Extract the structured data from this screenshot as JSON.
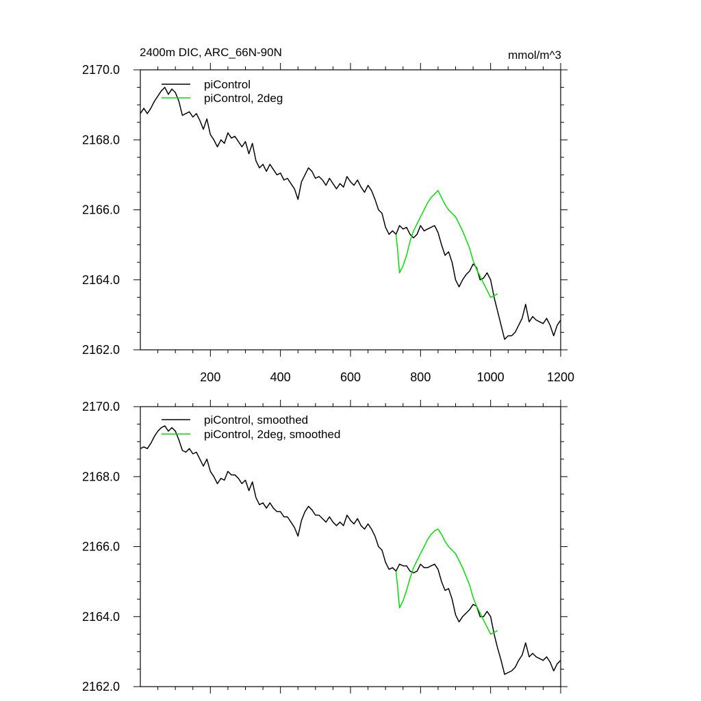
{
  "colors": {
    "black_series": "#000000",
    "green_series": "#00dd00",
    "axes": "#000000",
    "background": "#ffffff"
  },
  "chart_data": [
    {
      "type": "line",
      "title": "2400m DIC, ARC_66N-90N",
      "units": "mmol/m^3",
      "xlabel": "",
      "ylabel": "",
      "xlim": [
        0,
        1200
      ],
      "ylim": [
        2162.0,
        2170.0
      ],
      "x_ticks": [
        200,
        400,
        600,
        800,
        1000,
        1200
      ],
      "x_tick_labels": [
        "200",
        "400",
        "600",
        "800",
        "1000",
        "1200"
      ],
      "y_ticks": [
        2162.0,
        2164.0,
        2166.0,
        2168.0,
        2170.0
      ],
      "y_tick_labels": [
        "2162.0",
        "2164.0",
        "2166.0",
        "2168.0",
        "2170.0"
      ],
      "legend_placement": "top-left",
      "grid": false,
      "series": [
        {
          "name": "piControl",
          "color": "#000000",
          "x": [
            0,
            10,
            20,
            30,
            40,
            50,
            60,
            70,
            80,
            90,
            100,
            110,
            120,
            130,
            140,
            150,
            160,
            170,
            180,
            190,
            200,
            210,
            220,
            230,
            240,
            250,
            260,
            270,
            280,
            290,
            300,
            310,
            320,
            330,
            340,
            350,
            360,
            370,
            380,
            390,
            400,
            410,
            420,
            430,
            440,
            450,
            460,
            470,
            480,
            490,
            500,
            510,
            520,
            530,
            540,
            550,
            560,
            570,
            580,
            590,
            600,
            610,
            620,
            630,
            640,
            650,
            660,
            670,
            680,
            690,
            700,
            710,
            720,
            730,
            740,
            750,
            760,
            770,
            780,
            790,
            800,
            810,
            820,
            830,
            840,
            850,
            860,
            870,
            880,
            890,
            900,
            910,
            920,
            930,
            940,
            950,
            960,
            970,
            980,
            990,
            1000,
            1010,
            1020,
            1030,
            1040,
            1050,
            1060,
            1070,
            1080,
            1090,
            1100,
            1110,
            1120,
            1130,
            1140,
            1150,
            1160,
            1170,
            1180,
            1190,
            1200
          ],
          "values": [
            2168.75,
            2168.9,
            2168.75,
            2168.9,
            2169.1,
            2169.25,
            2169.4,
            2169.5,
            2169.3,
            2169.45,
            2169.35,
            2169.1,
            2168.7,
            2168.75,
            2168.8,
            2168.65,
            2168.75,
            2168.55,
            2168.3,
            2168.6,
            2168.15,
            2168.0,
            2167.8,
            2168.0,
            2167.9,
            2168.2,
            2168.05,
            2168.1,
            2167.95,
            2167.8,
            2167.95,
            2167.6,
            2167.9,
            2167.4,
            2167.2,
            2167.3,
            2167.1,
            2167.3,
            2167.15,
            2167.0,
            2167.05,
            2166.85,
            2166.9,
            2166.75,
            2166.6,
            2166.3,
            2166.8,
            2167.0,
            2167.2,
            2167.1,
            2166.9,
            2166.95,
            2166.85,
            2166.7,
            2166.9,
            2166.75,
            2166.6,
            2166.75,
            2166.65,
            2166.95,
            2166.8,
            2166.7,
            2166.85,
            2166.65,
            2166.5,
            2166.7,
            2166.55,
            2166.3,
            2166.0,
            2165.9,
            2165.5,
            2165.3,
            2165.4,
            2165.3,
            2165.55,
            2165.45,
            2165.5,
            2165.3,
            2165.2,
            2165.3,
            2165.55,
            2165.4,
            2165.45,
            2165.5,
            2165.55,
            2165.35,
            2165.0,
            2164.7,
            2164.8,
            2164.5,
            2164.0,
            2163.8,
            2164.0,
            2164.15,
            2164.25,
            2164.45,
            2164.35,
            2164.0,
            2164.05,
            2164.2,
            2164.0,
            2163.5,
            2163.1,
            2162.7,
            2162.3,
            2162.4,
            2162.4,
            2162.5,
            2162.7,
            2162.9,
            2163.3,
            2162.8,
            2162.95,
            2162.85,
            2162.8,
            2162.75,
            2162.9,
            2162.7,
            2162.4,
            2162.7,
            2162.85
          ],
          "name_shown": true
        },
        {
          "name": "piControl, 2deg",
          "color": "#00dd00",
          "x": [
            730,
            735,
            740,
            750,
            760,
            770,
            780,
            790,
            800,
            810,
            820,
            830,
            840,
            850,
            860,
            870,
            880,
            890,
            900,
            910,
            920,
            930,
            940,
            950,
            960,
            970,
            980,
            990,
            1000,
            1010,
            1020
          ],
          "values": [
            2165.3,
            2164.8,
            2164.2,
            2164.4,
            2164.7,
            2165.1,
            2165.4,
            2165.6,
            2165.8,
            2166.0,
            2166.2,
            2166.35,
            2166.45,
            2166.55,
            2166.35,
            2166.15,
            2166.0,
            2165.9,
            2165.8,
            2165.6,
            2165.4,
            2165.15,
            2164.9,
            2164.55,
            2164.3,
            2164.1,
            2163.9,
            2163.7,
            2163.5,
            2163.55,
            2163.6
          ]
        }
      ]
    },
    {
      "type": "line",
      "title": "",
      "xlabel": "",
      "ylabel": "",
      "xlim": [
        0,
        1200
      ],
      "ylim": [
        2162.0,
        2170.0
      ],
      "x_ticks": [
        200,
        400,
        600,
        800,
        1000,
        1200
      ],
      "y_ticks": [
        2162.0,
        2164.0,
        2166.0,
        2168.0,
        2170.0
      ],
      "y_tick_labels": [
        "2162.0",
        "2164.0",
        "2166.0",
        "2168.0",
        "2170.0"
      ],
      "legend_placement": "top-left",
      "grid": false,
      "series": [
        {
          "name": "piControl, smoothed",
          "color": "#000000",
          "x": [
            0,
            10,
            20,
            30,
            40,
            50,
            60,
            70,
            80,
            90,
            100,
            110,
            120,
            130,
            140,
            150,
            160,
            170,
            180,
            190,
            200,
            210,
            220,
            230,
            240,
            250,
            260,
            270,
            280,
            290,
            300,
            310,
            320,
            330,
            340,
            350,
            360,
            370,
            380,
            390,
            400,
            410,
            420,
            430,
            440,
            450,
            460,
            470,
            480,
            490,
            500,
            510,
            520,
            530,
            540,
            550,
            560,
            570,
            580,
            590,
            600,
            610,
            620,
            630,
            640,
            650,
            660,
            670,
            680,
            690,
            700,
            710,
            720,
            730,
            740,
            750,
            760,
            770,
            780,
            790,
            800,
            810,
            820,
            830,
            840,
            850,
            860,
            870,
            880,
            890,
            900,
            910,
            920,
            930,
            940,
            950,
            960,
            970,
            980,
            990,
            1000,
            1010,
            1020,
            1030,
            1040,
            1050,
            1060,
            1070,
            1080,
            1090,
            1100,
            1110,
            1120,
            1130,
            1140,
            1150,
            1160,
            1170,
            1180,
            1190,
            1200
          ],
          "values": [
            2168.8,
            2168.85,
            2168.8,
            2168.95,
            2169.15,
            2169.3,
            2169.4,
            2169.45,
            2169.3,
            2169.4,
            2169.3,
            2169.05,
            2168.75,
            2168.7,
            2168.8,
            2168.65,
            2168.7,
            2168.5,
            2168.3,
            2168.5,
            2168.15,
            2168.0,
            2167.8,
            2167.95,
            2167.9,
            2168.15,
            2168.05,
            2168.05,
            2167.95,
            2167.8,
            2167.9,
            2167.6,
            2167.85,
            2167.4,
            2167.2,
            2167.25,
            2167.1,
            2167.25,
            2167.1,
            2167.0,
            2167.0,
            2166.85,
            2166.85,
            2166.7,
            2166.55,
            2166.3,
            2166.75,
            2167.0,
            2167.15,
            2167.05,
            2166.9,
            2166.9,
            2166.8,
            2166.7,
            2166.85,
            2166.7,
            2166.6,
            2166.7,
            2166.6,
            2166.9,
            2166.75,
            2166.65,
            2166.8,
            2166.6,
            2166.5,
            2166.65,
            2166.5,
            2166.3,
            2166.0,
            2165.9,
            2165.55,
            2165.35,
            2165.4,
            2165.3,
            2165.5,
            2165.45,
            2165.45,
            2165.3,
            2165.25,
            2165.3,
            2165.5,
            2165.4,
            2165.4,
            2165.45,
            2165.5,
            2165.35,
            2165.0,
            2164.75,
            2164.8,
            2164.5,
            2164.05,
            2163.85,
            2164.0,
            2164.1,
            2164.2,
            2164.35,
            2164.3,
            2164.0,
            2164.0,
            2164.15,
            2164.0,
            2163.5,
            2163.1,
            2162.75,
            2162.35,
            2162.4,
            2162.45,
            2162.55,
            2162.75,
            2162.9,
            2163.25,
            2162.85,
            2162.95,
            2162.85,
            2162.8,
            2162.75,
            2162.85,
            2162.7,
            2162.45,
            2162.65,
            2162.75
          ]
        },
        {
          "name": "piControl, 2deg, smoothed",
          "color": "#00dd00",
          "x": [
            730,
            735,
            740,
            750,
            760,
            770,
            780,
            790,
            800,
            810,
            820,
            830,
            840,
            850,
            860,
            870,
            880,
            890,
            900,
            910,
            920,
            930,
            940,
            950,
            960,
            970,
            980,
            990,
            1000,
            1010,
            1020
          ],
          "values": [
            2165.3,
            2164.8,
            2164.25,
            2164.45,
            2164.75,
            2165.1,
            2165.4,
            2165.6,
            2165.8,
            2166.0,
            2166.2,
            2166.35,
            2166.45,
            2166.5,
            2166.35,
            2166.15,
            2166.0,
            2165.9,
            2165.8,
            2165.6,
            2165.4,
            2165.15,
            2164.9,
            2164.55,
            2164.3,
            2164.1,
            2163.9,
            2163.7,
            2163.5,
            2163.55,
            2163.6
          ]
        }
      ]
    }
  ]
}
